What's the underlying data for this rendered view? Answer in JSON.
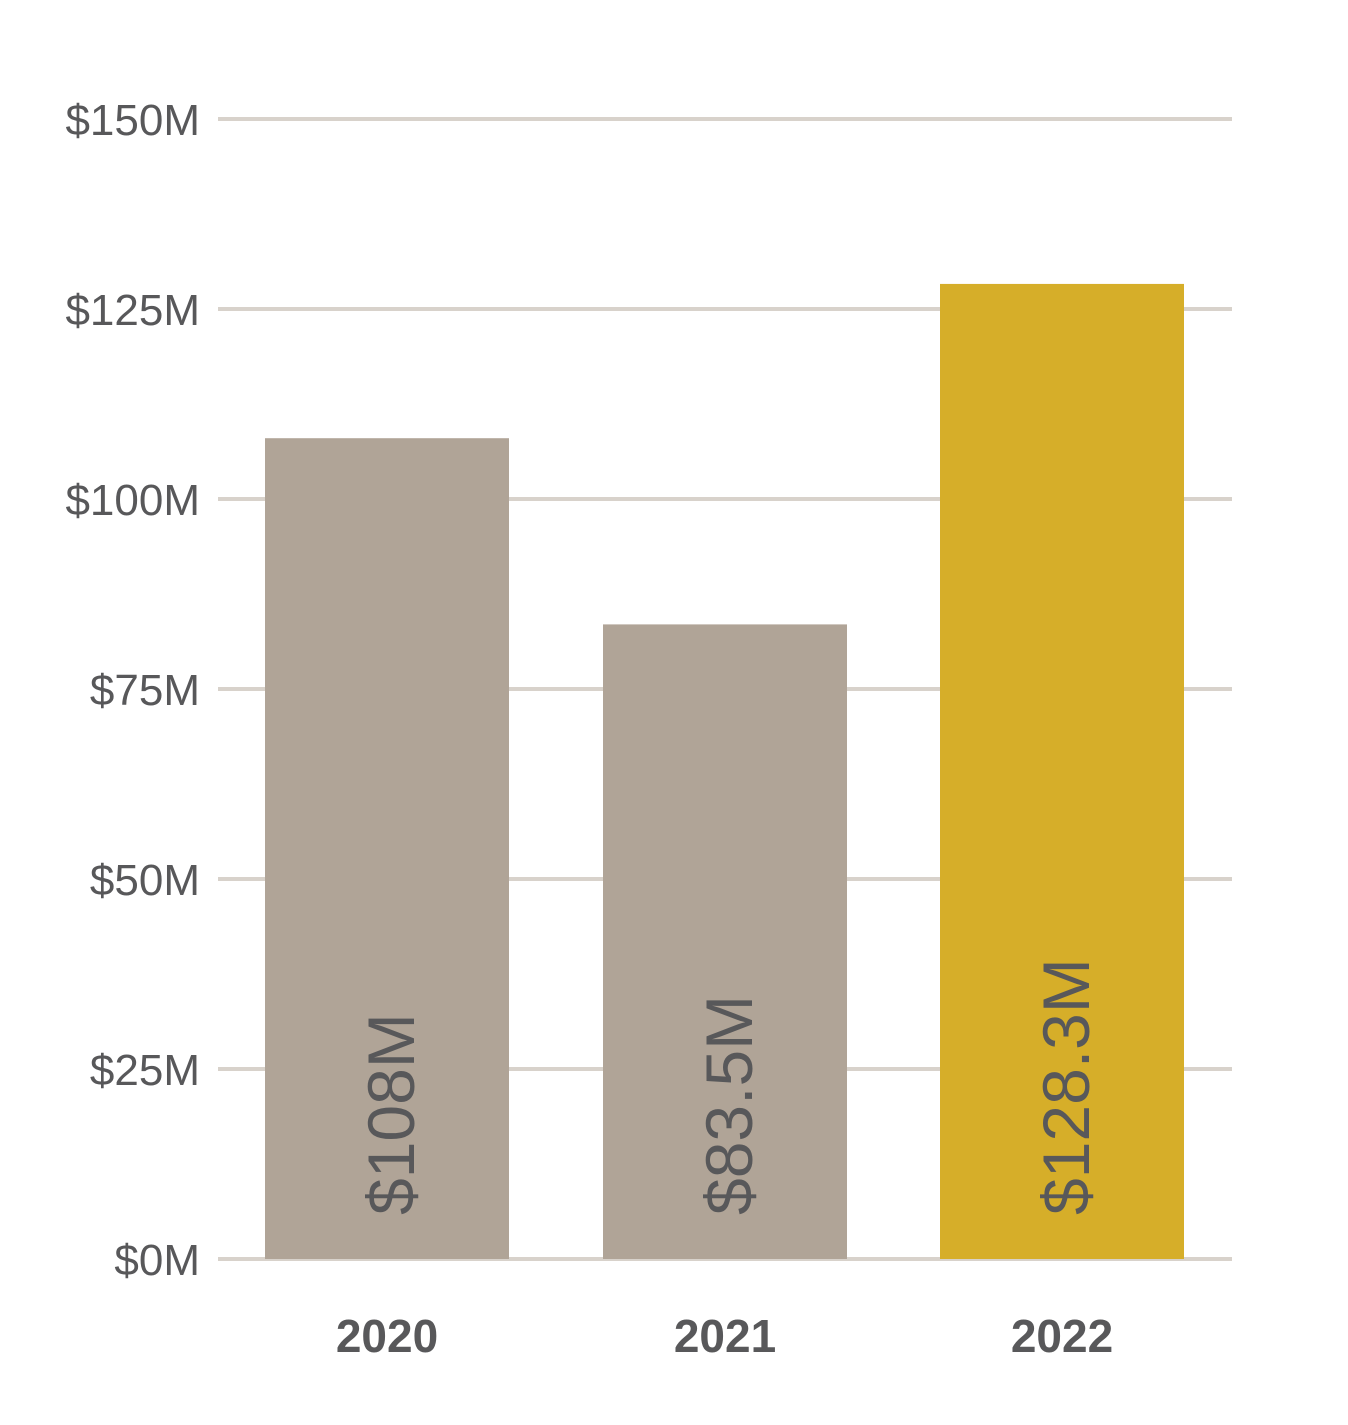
{
  "chart_data": {
    "type": "bar",
    "title": "",
    "xlabel": "",
    "ylabel": "",
    "categories": [
      "2020",
      "2021",
      "2022"
    ],
    "values": [
      108,
      83.5,
      128.3
    ],
    "value_unit": "$M",
    "data_labels": [
      "$108M",
      "$83.5M",
      "$128.3M"
    ],
    "ylim": [
      0,
      150
    ],
    "y_ticks": [
      0,
      25,
      50,
      75,
      100,
      125,
      150
    ],
    "y_tick_labels": [
      "$0M",
      "$25M",
      "$50M",
      "$75M",
      "$100M",
      "$125M",
      "$150M"
    ],
    "grid": true,
    "legend": "none",
    "bar_colors": [
      "#b0a497",
      "#b0a497",
      "#d6ae29"
    ],
    "gridline_color": "#d8d2cb",
    "text_color": "#58585a"
  }
}
